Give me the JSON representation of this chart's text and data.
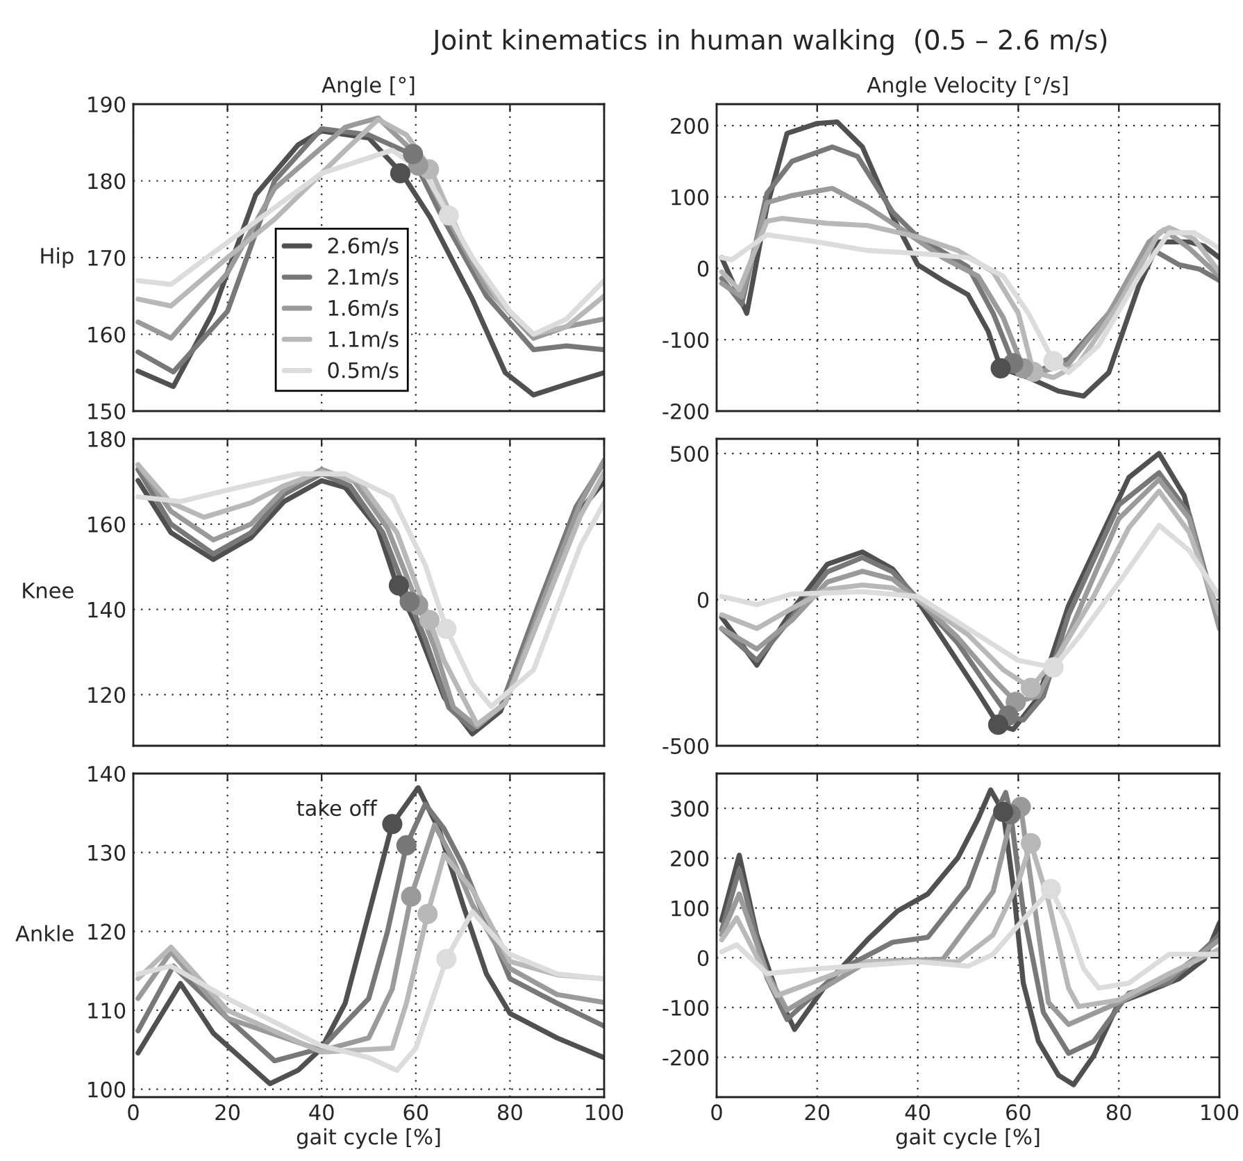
{
  "chart_data": [
    {
      "type": "line",
      "title": "Angle [°]",
      "ylabel": "Hip",
      "xlim": [
        0,
        100
      ],
      "xticks": [
        0,
        20,
        40,
        60,
        80,
        100
      ],
      "ylim": [
        150,
        190
      ],
      "yticks": [
        150,
        160,
        170,
        180,
        190
      ],
      "grid": true,
      "tick_labels": "y",
      "legend": "center left",
      "line_style": "solid",
      "annotations": [
        "Joint kinematics in human walking  (0.5 – 2.6 m/s)"
      ],
      "series": [
        {
          "name": "2.6m/s",
          "color": "#505050",
          "x": [
            1,
            8.5,
            17,
            26,
            35,
            40,
            50,
            57,
            63,
            72,
            79,
            85,
            92,
            100
          ],
          "values": [
            155.2,
            153.2,
            163,
            178.2,
            184.7,
            186.5,
            185.6,
            181,
            175.3,
            164.6,
            155,
            152.1,
            153.5,
            155
          ]
        },
        {
          "name": "2.1m/s",
          "color": "#787878",
          "x": [
            1,
            8.5,
            20,
            30,
            40,
            50,
            59,
            65,
            75,
            85,
            92,
            100
          ],
          "values": [
            157.7,
            155.1,
            163,
            180,
            186.8,
            186,
            183.5,
            176,
            165,
            158,
            158.5,
            158
          ]
        },
        {
          "name": "1.6m/s",
          "color": "#9a9a9a",
          "x": [
            1,
            8,
            20,
            30,
            45,
            52,
            60,
            66,
            75,
            85,
            92,
            100
          ],
          "values": [
            161.6,
            159.5,
            168,
            179,
            187,
            188.2,
            183.5,
            176,
            166,
            159.5,
            161,
            162
          ]
        },
        {
          "name": "1.1m/s",
          "color": "#b8b8b8",
          "x": [
            1,
            8,
            20,
            30,
            45,
            52,
            58,
            63,
            70,
            78,
            85,
            92,
            100
          ],
          "values": [
            164.6,
            163.7,
            170,
            175,
            184,
            188,
            186,
            181.7,
            172,
            164,
            160,
            161,
            165
          ]
        },
        {
          "name": "0.5m/s",
          "color": "#dcdcdc",
          "x": [
            1,
            8,
            20,
            40,
            55,
            62,
            67,
            72,
            80,
            85,
            92,
            100
          ],
          "values": [
            167,
            166.5,
            172,
            181,
            184,
            181,
            175.5,
            170,
            163,
            160,
            162,
            167
          ]
        },
        {
          "type": "scatter",
          "marker": "circle",
          "x": [
            56.7,
            59.4,
            60.5,
            62.8,
            67
          ],
          "values": [
            181,
            183.5,
            182,
            181.5,
            175.5
          ],
          "colors": [
            "#505050",
            "#787878",
            "#9a9a9a",
            "#b8b8b8",
            "#dcdcdc"
          ]
        }
      ]
    },
    {
      "type": "line",
      "title": "Angle Velocity [°/s]",
      "xlim": [
        0,
        100
      ],
      "xticks": [
        0,
        20,
        40,
        60,
        80,
        100
      ],
      "ylim": [
        -200,
        230
      ],
      "yticks": [
        -200,
        -100,
        0,
        100,
        200
      ],
      "grid": true,
      "tick_labels": "y",
      "line_style": "solid",
      "series": [
        {
          "color": "#505050",
          "x": [
            1,
            6,
            10,
            14,
            20,
            24,
            29,
            35,
            40,
            45,
            50,
            54,
            56.5,
            62,
            68,
            73,
            78,
            84,
            88,
            94,
            97,
            100
          ],
          "values": [
            15,
            -63,
            86,
            189,
            203,
            205,
            170,
            73,
            5,
            -17,
            -37,
            -88,
            -140,
            -153,
            -172,
            -179,
            -146,
            -24,
            37,
            37,
            31,
            15
          ]
        },
        {
          "color": "#787878",
          "x": [
            1,
            5,
            10,
            15,
            23,
            28,
            35,
            40,
            50,
            55,
            59,
            63,
            70,
            78,
            86,
            88,
            92,
            96,
            100
          ],
          "values": [
            -14,
            -50,
            105,
            150,
            170,
            157,
            79,
            44,
            2,
            -63,
            -133,
            -146,
            -127,
            -63,
            28,
            21,
            5,
            -1,
            -17
          ]
        },
        {
          "color": "#9a9a9a",
          "x": [
            1,
            5,
            10,
            15,
            23,
            30,
            37,
            45,
            52,
            57,
            61,
            64,
            70,
            78,
            86,
            89,
            94,
            100
          ],
          "values": [
            -21,
            -40,
            92,
            102,
            112,
            86,
            54,
            15,
            -11,
            -69,
            -140,
            -146,
            -134,
            -63,
            37,
            54,
            28,
            -11
          ]
        },
        {
          "color": "#b8b8b8",
          "x": [
            1,
            4.5,
            10,
            13,
            22,
            30,
            40,
            48,
            55,
            60,
            63,
            67,
            72,
            80,
            88,
            90,
            95,
            100
          ],
          "values": [
            -5,
            -30,
            66,
            70,
            63,
            60,
            44,
            25,
            -5,
            -63,
            -145,
            -153,
            -134,
            -50,
            50,
            57,
            41,
            -5
          ]
        },
        {
          "color": "#dcdcdc",
          "x": [
            1,
            3,
            10,
            20,
            30,
            40,
            50,
            57,
            62,
            67,
            70,
            76,
            84,
            90,
            95,
            100
          ],
          "values": [
            15,
            12,
            47,
            37,
            25,
            21,
            15,
            -11,
            -63,
            -130,
            -146,
            -108,
            -11,
            50,
            50,
            28
          ]
        },
        {
          "type": "scatter",
          "marker": "circle",
          "x": [
            56.5,
            59,
            61,
            63,
            67
          ],
          "values": [
            -140,
            -133,
            -140,
            -145,
            -130
          ],
          "colors": [
            "#505050",
            "#787878",
            "#9a9a9a",
            "#b8b8b8",
            "#dcdcdc"
          ]
        }
      ]
    },
    {
      "type": "line",
      "ylabel": "Knee",
      "xlim": [
        0,
        100
      ],
      "xticks": [
        0,
        20,
        40,
        60,
        80,
        100
      ],
      "ylim": [
        108,
        180
      ],
      "yticks": [
        120,
        140,
        160,
        180
      ],
      "grid": true,
      "tick_labels": "y",
      "line_style": "solid",
      "series": [
        {
          "color": "#505050",
          "x": [
            1,
            8,
            17,
            25,
            32,
            40,
            45,
            52,
            56,
            60,
            66,
            72,
            78,
            86,
            94,
            100
          ],
          "values": [
            170.2,
            158,
            151.7,
            156.8,
            165.3,
            170.2,
            168.6,
            158.9,
            145.6,
            136.5,
            119.4,
            110.8,
            116.1,
            139.7,
            162,
            170
          ]
        },
        {
          "color": "#787878",
          "x": [
            1,
            8,
            17,
            25,
            32,
            40,
            46,
            53,
            58.7,
            62,
            67,
            72,
            78,
            86,
            94,
            100
          ],
          "values": [
            172.8,
            160,
            153,
            158,
            167,
            171.8,
            169,
            158,
            141.8,
            133,
            117,
            111.9,
            117,
            141,
            164,
            174.5
          ]
        },
        {
          "color": "#9a9a9a",
          "x": [
            1,
            8,
            17,
            25,
            32,
            40,
            47,
            54,
            60.5,
            64,
            68,
            73,
            79,
            87,
            95,
            100
          ],
          "values": [
            173.9,
            163,
            156.3,
            160,
            168,
            172.8,
            170,
            159,
            141,
            131,
            117,
            112.5,
            118,
            142,
            165,
            175
          ]
        },
        {
          "color": "#b8b8b8",
          "x": [
            1,
            8,
            15,
            25,
            32,
            40,
            48,
            56,
            62.9,
            66,
            73,
            79,
            87,
            95,
            100
          ],
          "values": [
            173.9,
            165,
            161.6,
            165,
            169,
            172.3,
            170,
            158,
            137.5,
            128,
            113,
            118,
            140,
            162,
            172
          ]
        },
        {
          "color": "#dcdcdc",
          "x": [
            1,
            10,
            20,
            35,
            45,
            55,
            62,
            66.5,
            72,
            76,
            85,
            95,
            100
          ],
          "values": [
            166.4,
            165.3,
            168,
            171.8,
            171.8,
            166.4,
            150.4,
            135.4,
            122.6,
            117.2,
            125.8,
            155,
            165
          ]
        },
        {
          "type": "scatter",
          "marker": "circle",
          "x": [
            56.4,
            58.7,
            60.5,
            62.9,
            66.5
          ],
          "values": [
            145.6,
            141.8,
            141,
            137.5,
            135.4
          ],
          "colors": [
            "#505050",
            "#787878",
            "#9a9a9a",
            "#b8b8b8",
            "#dcdcdc"
          ]
        }
      ]
    },
    {
      "type": "line",
      "xlim": [
        0,
        100
      ],
      "xticks": [
        0,
        20,
        40,
        60,
        80,
        100
      ],
      "ylim": [
        -500,
        550
      ],
      "yticks": [
        -500,
        0,
        500
      ],
      "grid": true,
      "tick_labels": "y",
      "line_style": "solid",
      "series": [
        {
          "color": "#505050",
          "x": [
            1,
            8,
            15,
            22,
            29,
            35,
            40,
            46,
            52,
            56,
            59,
            64,
            70,
            76,
            82,
            88,
            93,
            97,
            100
          ],
          "values": [
            -60,
            -224,
            -36,
            121,
            163,
            105,
            -5,
            -161,
            -318,
            -428,
            -444,
            -334,
            -20,
            199,
            418,
            500,
            356,
            89,
            -52
          ]
        },
        {
          "color": "#787878",
          "x": [
            1,
            8,
            15,
            22,
            29,
            35,
            40,
            48,
            54,
            58,
            61,
            65,
            70,
            80,
            88,
            94,
            100
          ],
          "values": [
            -99,
            -208,
            -60,
            95,
            144,
            95,
            3,
            -150,
            -300,
            -397,
            -412,
            -330,
            -52,
            324,
            434,
            293,
            -83
          ]
        },
        {
          "color": "#9a9a9a",
          "x": [
            1,
            8,
            15,
            22,
            29,
            35,
            40,
            48,
            55,
            59.5,
            64,
            70,
            80,
            88,
            94,
            100
          ],
          "values": [
            -99,
            -169,
            -70,
            60,
            97,
            70,
            0,
            -130,
            -270,
            -350,
            -330,
            -120,
            277,
            411,
            277,
            -99
          ]
        },
        {
          "color": "#b8b8b8",
          "x": [
            1,
            8,
            15,
            22,
            29,
            35,
            40,
            50,
            57,
            62.5,
            68,
            75,
            82,
            88,
            94,
            100
          ],
          "values": [
            -52,
            -99,
            -30,
            35,
            50,
            40,
            0,
            -120,
            -240,
            -302,
            -190,
            11,
            246,
            371,
            230,
            -52
          ]
        },
        {
          "color": "#dcdcdc",
          "x": [
            1,
            8,
            15,
            29,
            40,
            50,
            60,
            67,
            72,
            80,
            88,
            94,
            100
          ],
          "values": [
            11,
            -17,
            19,
            27,
            11,
            -99,
            -208,
            -232,
            -130,
            58,
            254,
            168,
            11
          ]
        },
        {
          "type": "scatter",
          "marker": "circle",
          "x": [
            56,
            58,
            59.5,
            62.5,
            67
          ],
          "values": [
            -428,
            -397,
            -350,
            -302,
            -232
          ],
          "colors": [
            "#505050",
            "#787878",
            "#9a9a9a",
            "#b8b8b8",
            "#dcdcdc"
          ]
        }
      ]
    },
    {
      "type": "line",
      "ylabel": "Ankle",
      "xlabel": "gait cycle [%]",
      "xlim": [
        0,
        100
      ],
      "xticks": [
        0,
        20,
        40,
        60,
        80,
        100
      ],
      "ylim": [
        99,
        140
      ],
      "yticks": [
        100,
        110,
        120,
        130,
        140
      ],
      "grid": true,
      "line_style": "solid",
      "annotations": [
        {
          "text": "take off",
          "x": 55,
          "y": 133.6
        }
      ],
      "series": [
        {
          "color": "#505050",
          "x": [
            1,
            10,
            17,
            29,
            35,
            40,
            45,
            50,
            55,
            60.5,
            65,
            70,
            75,
            80,
            90,
            100
          ],
          "values": [
            104.6,
            113.4,
            107.1,
            100.7,
            102.4,
            105.2,
            110.9,
            122.2,
            133.6,
            138.2,
            132.8,
            123.4,
            114.6,
            109.6,
            106.5,
            104
          ]
        },
        {
          "color": "#787878",
          "x": [
            1,
            8.5,
            20,
            30,
            40,
            50,
            54,
            58,
            62,
            66,
            70,
            80,
            90,
            100
          ],
          "values": [
            107.4,
            115.6,
            109,
            103.6,
            105.2,
            111.5,
            120,
            130.9,
            136.1,
            133,
            128.4,
            114,
            110.9,
            108
          ]
        },
        {
          "color": "#9a9a9a",
          "x": [
            1,
            8,
            20,
            40,
            50,
            55,
            59,
            64,
            68,
            72,
            80,
            90,
            100
          ],
          "values": [
            111.5,
            117.4,
            109,
            104.9,
            106.5,
            112.7,
            124.4,
            133.5,
            129,
            123.4,
            115.3,
            112,
            111
          ]
        },
        {
          "color": "#b8b8b8",
          "x": [
            1,
            8,
            20,
            40,
            55,
            58,
            62.5,
            66,
            72,
            80,
            90,
            100
          ],
          "values": [
            114,
            118,
            110,
            104.7,
            105.2,
            110.9,
            122.2,
            129.7,
            125.3,
            116.2,
            114.5,
            114
          ]
        },
        {
          "color": "#dcdcdc",
          "x": [
            1,
            8,
            20,
            40,
            50,
            56,
            60,
            66.5,
            72,
            80,
            90,
            100
          ],
          "values": [
            114.6,
            115.6,
            111.5,
            105.5,
            104,
            102.4,
            105.2,
            116.5,
            122.5,
            117.1,
            114.6,
            114
          ]
        },
        {
          "type": "scatter",
          "marker": "circle",
          "x": [
            55,
            58,
            59,
            62.5,
            66.5
          ],
          "values": [
            133.6,
            130.9,
            124.4,
            122.2,
            116.5
          ],
          "colors": [
            "#505050",
            "#787878",
            "#9a9a9a",
            "#b8b8b8",
            "#dcdcdc"
          ]
        }
      ]
    },
    {
      "type": "line",
      "xlabel": "gait cycle [%]",
      "xlim": [
        0,
        100
      ],
      "xticks": [
        0,
        20,
        40,
        60,
        80,
        100
      ],
      "ylim": [
        -280,
        370
      ],
      "yticks": [
        -200,
        -100,
        0,
        100,
        200,
        300
      ],
      "grid": true,
      "line_style": "solid",
      "series": [
        {
          "color": "#505050",
          "x": [
            1,
            4.5,
            8,
            12,
            15.5,
            22,
            30,
            36,
            42,
            48,
            52,
            54.5,
            57,
            59,
            61,
            64,
            68,
            71,
            75,
            80,
            85,
            92,
            97,
            100
          ],
          "values": [
            75,
            206,
            46,
            -71,
            -144,
            -51,
            36,
            94,
            128,
            201,
            279,
            337,
            293,
            143,
            -51,
            -168,
            -236,
            -255,
            -197,
            -90,
            -71,
            -42,
            -3,
            70
          ]
        },
        {
          "color": "#787878",
          "x": [
            1,
            4.5,
            10,
            14,
            25,
            35,
            42,
            50,
            55,
            57.5,
            58.5,
            61,
            65,
            70,
            75,
            82,
            90,
            100
          ],
          "values": [
            55,
            177,
            -40,
            -124,
            -22,
            31,
            41,
            143,
            279,
            332,
            288,
            94,
            -110,
            -192,
            -168,
            -71,
            -50,
            46
          ]
        },
        {
          "color": "#9a9a9a",
          "x": [
            1,
            4.5,
            10,
            14,
            30,
            45,
            55,
            59,
            60.5,
            62,
            66,
            70,
            80,
            90,
            100
          ],
          "values": [
            46,
            128,
            -30,
            -105,
            -8,
            -3,
            133,
            298,
            303,
            191,
            -90,
            -134,
            -90,
            -40,
            36
          ]
        },
        {
          "color": "#b8b8b8",
          "x": [
            1,
            4,
            12,
            30,
            48,
            55,
            60,
            62.5,
            66,
            70,
            72,
            80,
            90,
            100
          ],
          "values": [
            36,
            80,
            -76,
            -8,
            -8,
            46,
            152,
            230,
            114,
            -61,
            -98,
            -85,
            -32,
            17
          ]
        },
        {
          "color": "#dcdcdc",
          "x": [
            1,
            4,
            10,
            20,
            40,
            50,
            55,
            60,
            66.5,
            70,
            73,
            76,
            82,
            90,
            100
          ],
          "values": [
            12,
            26,
            -32,
            -22,
            -8,
            -17,
            7,
            65,
            138,
            65,
            -22,
            -61,
            -51,
            7,
            7
          ]
        },
        {
          "type": "scatter",
          "marker": "circle",
          "x": [
            57,
            58.5,
            60.5,
            62.5,
            66.5
          ],
          "values": [
            293,
            288,
            303,
            230,
            138
          ],
          "colors": [
            "#505050",
            "#787878",
            "#9a9a9a",
            "#b8b8b8",
            "#dcdcdc"
          ]
        }
      ]
    }
  ]
}
